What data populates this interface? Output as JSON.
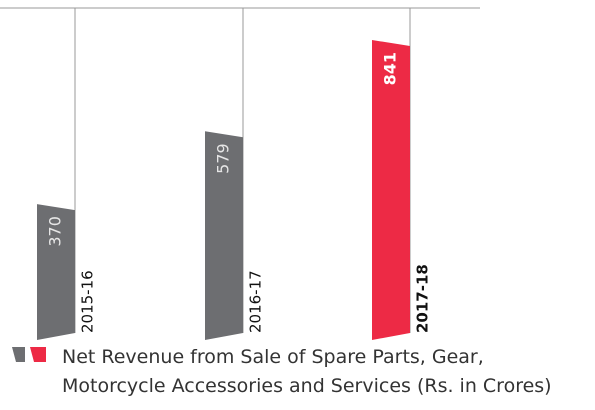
{
  "chart_data": {
    "type": "bar",
    "categories": [
      "2015-16",
      "2016-17",
      "2017-18"
    ],
    "series": [
      {
        "name": "Net Revenue from Sale of Spare Parts, Gear, Motorcycle Accessories and Services (Rs. in Crores)",
        "colors": [
          "#6d6e71",
          "#6d6e71",
          "#ed2a45"
        ],
        "values": [
          370,
          579,
          841
        ]
      }
    ]
  }
}
